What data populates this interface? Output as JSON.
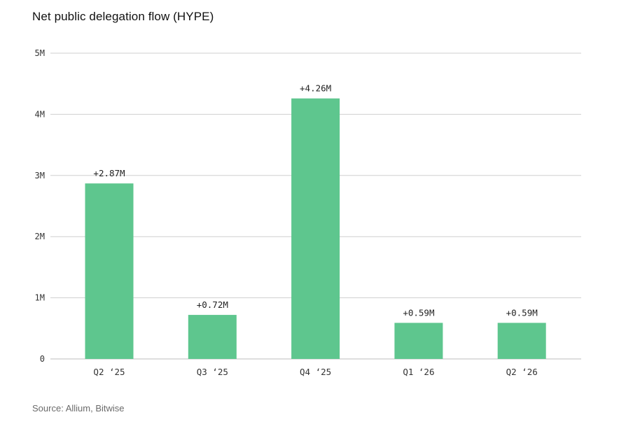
{
  "chart_data": {
    "type": "bar",
    "title": "Net public delegation flow (HYPE)",
    "categories": [
      "Q2 ‘25",
      "Q3 ‘25",
      "Q4 ‘25",
      "Q1 ‘26",
      "Q2 ‘26"
    ],
    "values": [
      2.87,
      0.72,
      4.26,
      0.59,
      0.59
    ],
    "data_labels": [
      "+2.87M",
      "+0.72M",
      "+4.26M",
      "+0.59M",
      "+0.59M"
    ],
    "ylim": [
      0,
      5
    ],
    "yticks": [
      0,
      1,
      2,
      3,
      4,
      5
    ],
    "ytick_labels": [
      "0",
      "1M",
      "2M",
      "3M",
      "4M",
      "5M"
    ],
    "xlabel": "",
    "ylabel": "",
    "grid": true,
    "bar_color": "#5ec68e",
    "grid_color": "#cfcfcf"
  },
  "source": "Source: Allium, Bitwise"
}
